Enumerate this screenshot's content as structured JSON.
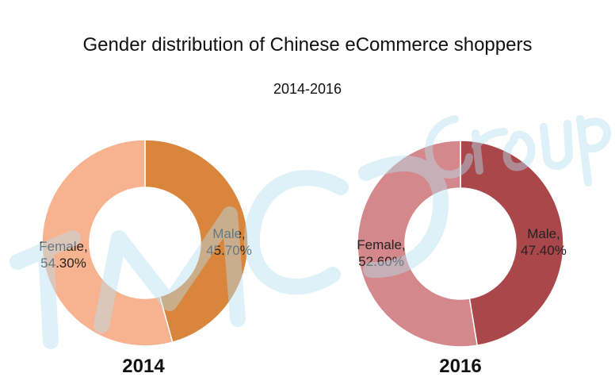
{
  "chart_data": [
    {
      "type": "pie",
      "title": "Gender distribution of Chinese eCommerce shoppers",
      "subtitle": "2014-2016",
      "year_label": "2014",
      "slices": [
        {
          "category": "Male",
          "label": "Male,",
          "value": 45.7,
          "value_label": "45.70%",
          "color": "#d9853b"
        },
        {
          "category": "Female",
          "label": "Female,",
          "value": 54.3,
          "value_label": "54.30%",
          "color": "#f7b38f"
        }
      ]
    },
    {
      "type": "pie",
      "year_label": "2016",
      "slices": [
        {
          "category": "Male",
          "label": "Male,",
          "value": 47.4,
          "value_label": "47.40%",
          "color": "#a9474a"
        },
        {
          "category": "Female",
          "label": "Female,",
          "value": 52.6,
          "value_label": "52.60%",
          "color": "#d4888b"
        }
      ]
    }
  ],
  "watermark": {
    "text": "TMO",
    "subtext": "Group",
    "color": "#b8dff0"
  }
}
